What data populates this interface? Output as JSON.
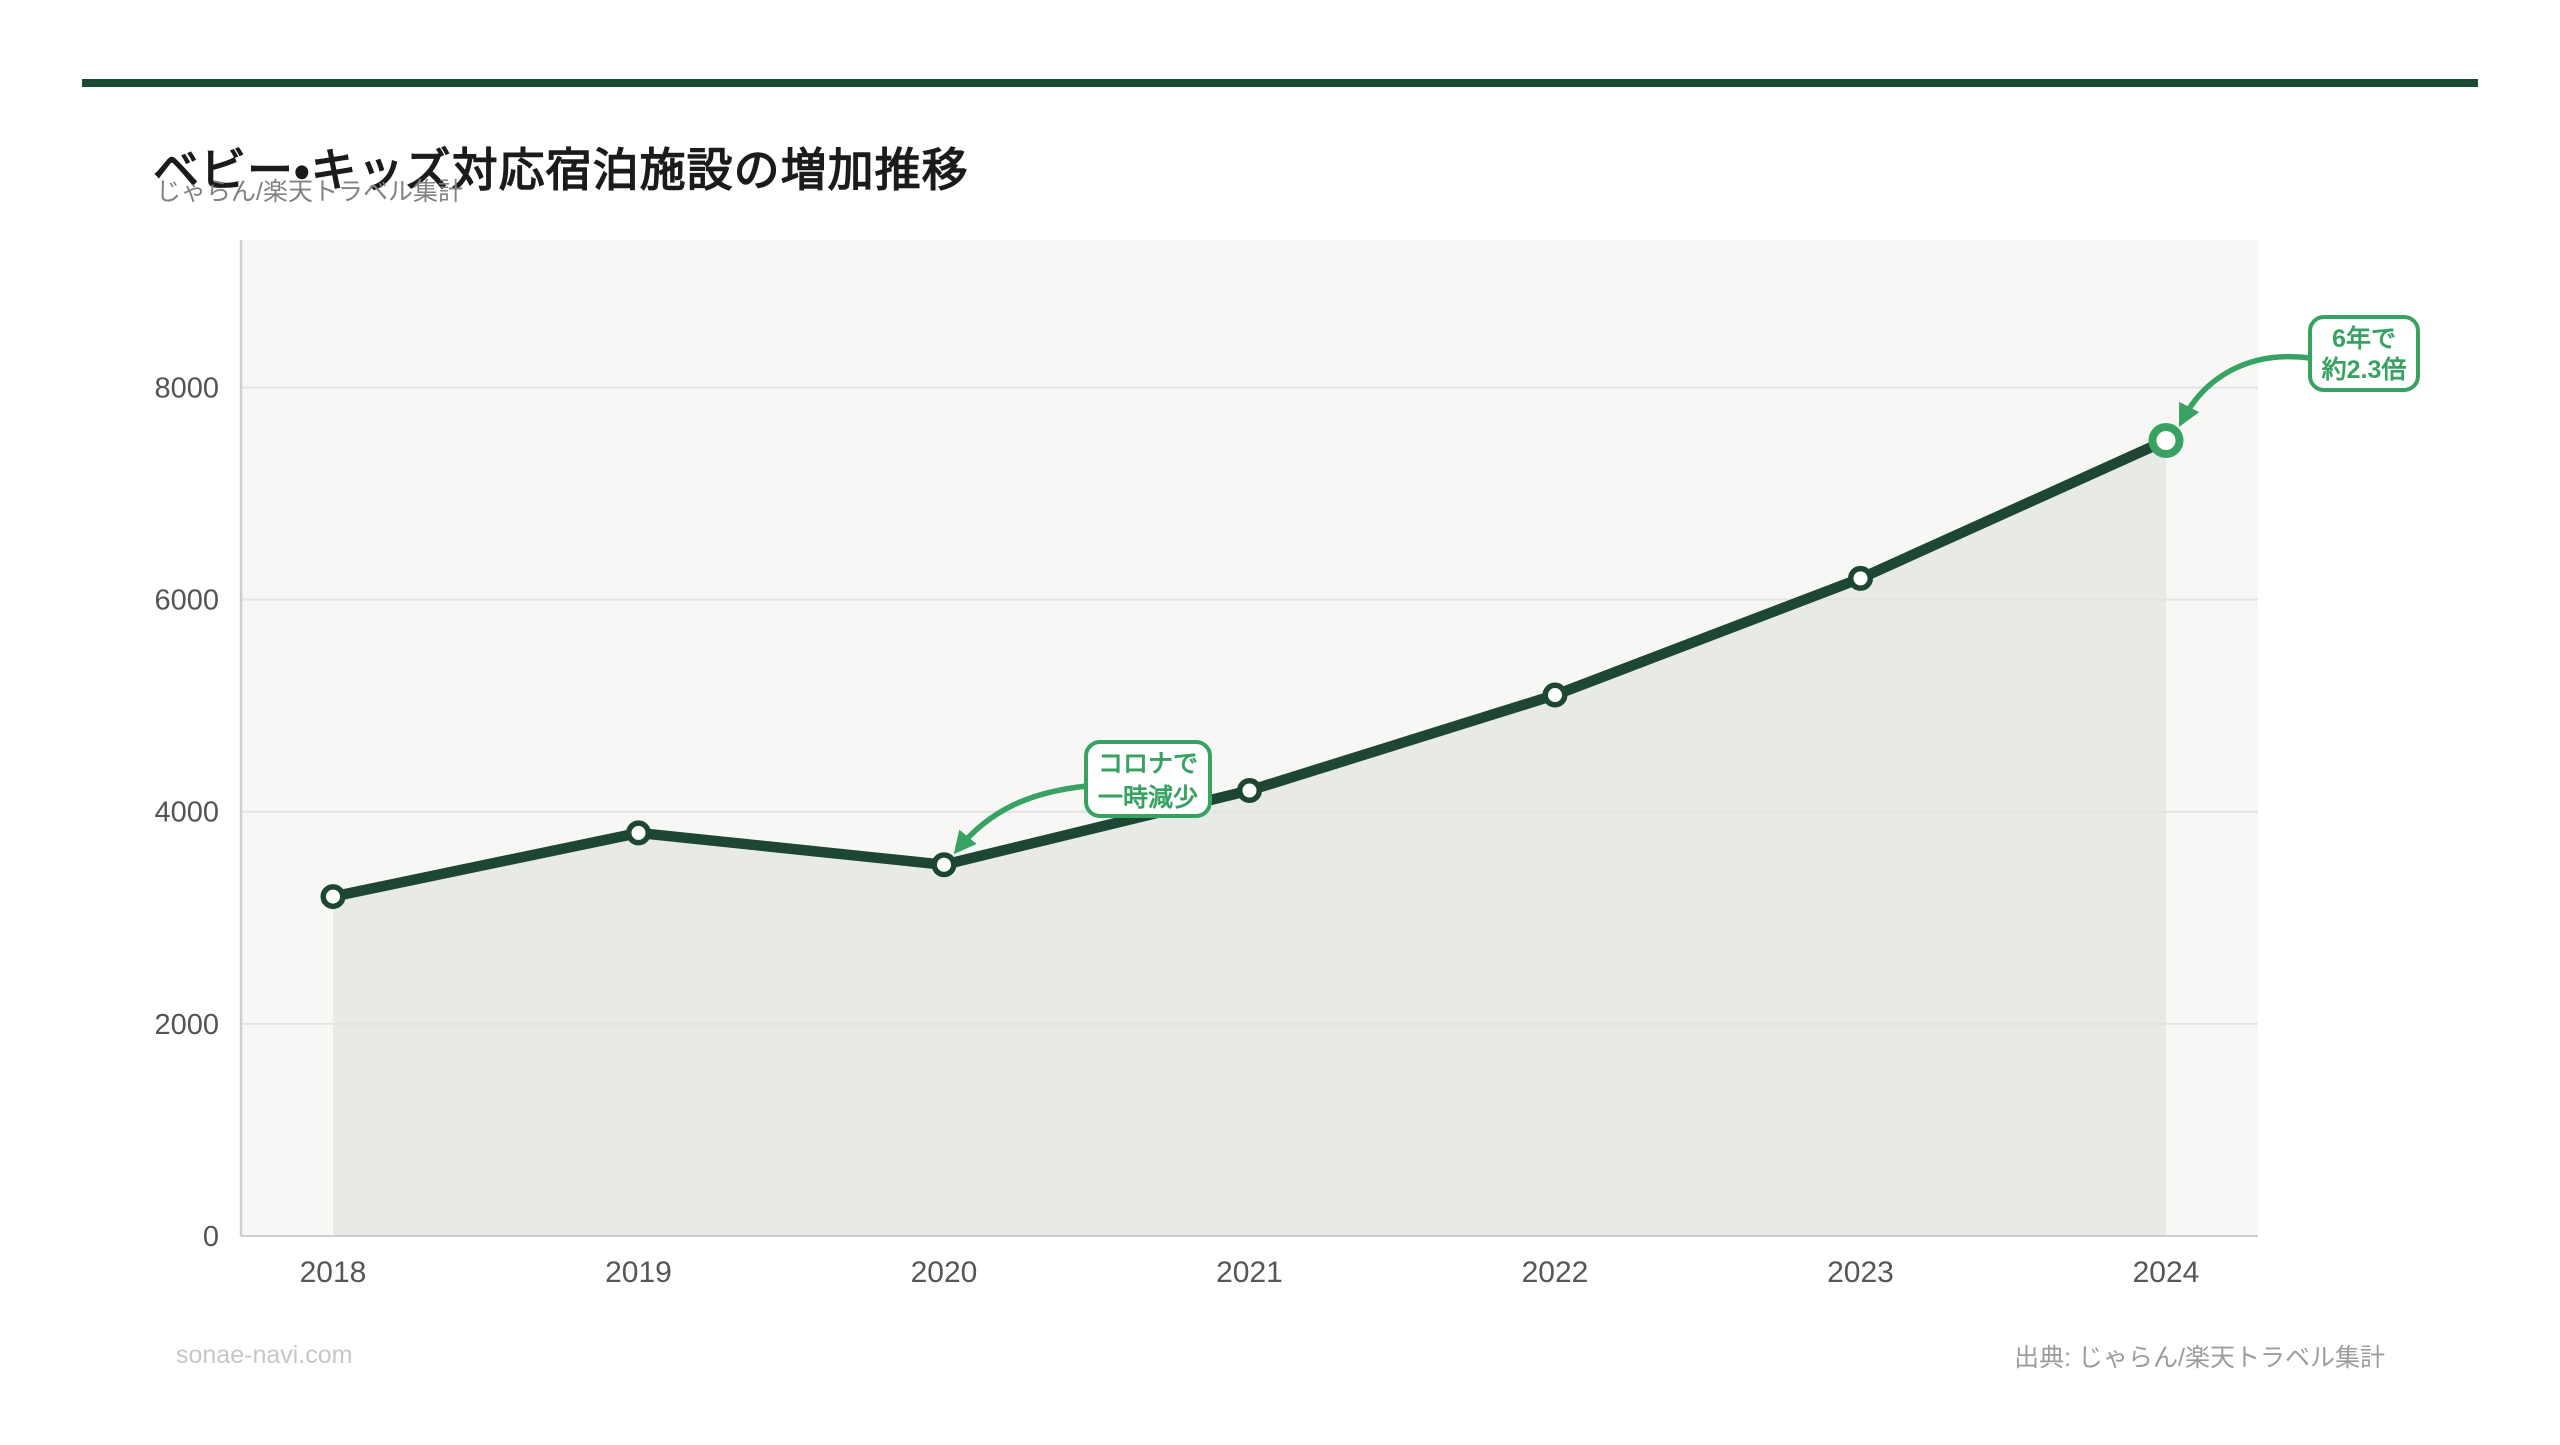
{
  "page": {
    "accent_bar_color": "#1b4a32"
  },
  "header": {
    "title": "ベビー・キッズ対応宿泊施設の増加推移",
    "subtitle": "じゃらん/楽天トラベル集計"
  },
  "footer": {
    "left": "sonae-navi.com",
    "right": "出典: じゃらん/楽天トラベル集計"
  },
  "chart_data": {
    "type": "area",
    "title": "ベビー・キッズ対応宿泊施設の増加推移",
    "subtitle": "じゃらん/楽天トラベル集計",
    "x": [
      2018,
      2019,
      2020,
      2021,
      2022,
      2023,
      2024
    ],
    "values": [
      3200,
      3800,
      3500,
      4200,
      5100,
      6200,
      7500
    ],
    "xlabel": "",
    "ylabel": "",
    "ylim": [
      0,
      9390
    ],
    "yticks": [
      0,
      2000,
      4000,
      6000,
      8000
    ],
    "grid": "horizontal",
    "legend": "none",
    "highlight_last_point": true,
    "colors": {
      "line": "#1d4733",
      "marker_ring": "#1d4733",
      "marker_fill": "#ffffff",
      "accent_green": "#38a263",
      "plot_bg": "#f7f8f6",
      "area_fill": "#e8eae6",
      "gridline": "#e3e4e2",
      "axis": "#cdcfcd",
      "tick_label": "#545454"
    },
    "annotations": [
      {
        "lines": [
          "コロナで",
          "一時減少"
        ],
        "target_year": 2020,
        "target_value": 3500
      },
      {
        "lines": [
          "6年で",
          "約2.3倍"
        ],
        "target_year": 2024,
        "target_value": 7500
      }
    ]
  }
}
